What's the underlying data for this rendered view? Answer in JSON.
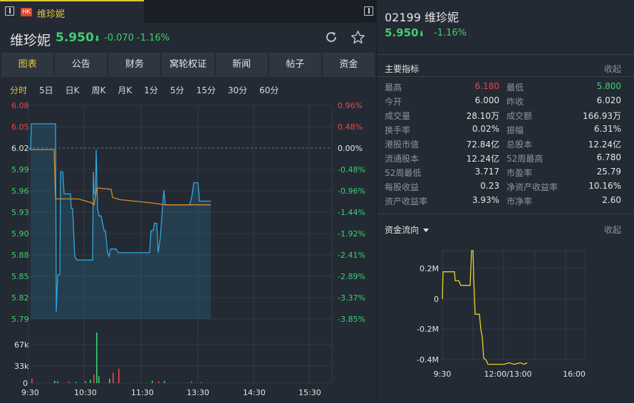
{
  "tab": {
    "badge": "HK",
    "title": "维珍妮"
  },
  "quote": {
    "name": "维珍妮",
    "price": "5.950",
    "arrow": "⬇",
    "change": "-0.070",
    "percent": "-1.16%"
  },
  "func_tabs": [
    "图表",
    "公告",
    "财务",
    "窝轮权证",
    "新闻",
    "帖子",
    "资金"
  ],
  "period_tabs": [
    "分时",
    "5日",
    "日K",
    "周K",
    "月K",
    "1分",
    "5分",
    "15分",
    "30分",
    "60分"
  ],
  "chart": {
    "price_ticks": [
      "6.08",
      "6.05",
      "6.02",
      "5.99",
      "5.96",
      "5.93",
      "5.90",
      "5.88",
      "5.85",
      "5.82",
      "5.79"
    ],
    "pct_ticks": [
      "0.96%",
      "0.48%",
      "0.00%",
      "-0.48%",
      "-0.96%",
      "-1.44%",
      "-1.92%",
      "-2.41%",
      "-2.89%",
      "-3.37%",
      "-3.85%"
    ],
    "volume_ticks": [
      "67k",
      "33k",
      "0"
    ],
    "time_ticks": [
      "9:30",
      "10:30",
      "11:30",
      "13:30",
      "14:30",
      "15:30"
    ],
    "colors": {
      "price_line": "#2ea8e0",
      "avg_line": "#d98a2e",
      "up": "#e8484e",
      "down": "#3fcf72"
    }
  },
  "right": {
    "title": "02199 维珍妮",
    "price": "5.950",
    "arrow": "⬇",
    "percent": "-1.16%",
    "key_title": "主要指标",
    "collapse": "收起",
    "indicators": [
      [
        "最高",
        "6.180",
        "最低",
        "5.800"
      ],
      [
        "今开",
        "6.000",
        "昨收",
        "6.020"
      ],
      [
        "成交量",
        "28.10万",
        "成交额",
        "166.93万"
      ],
      [
        "换手率",
        "0.02%",
        "振幅",
        "6.31%"
      ],
      [
        "港股市值",
        "72.84亿",
        "总股本",
        "12.24亿"
      ],
      [
        "流通股本",
        "12.24亿",
        "52周最高",
        "6.780"
      ],
      [
        "52周最低",
        "3.717",
        "市盈率",
        "25.79"
      ],
      [
        "每股收益",
        "0.23",
        "净资产收益率",
        "10.16%"
      ],
      [
        "资产收益率",
        "3.93%",
        "市净率",
        "2.60"
      ]
    ],
    "flow_title": "资金流向",
    "flow_collapse": "收起",
    "flow_y_ticks": [
      "0.2M",
      "0",
      "-0.2M",
      "-0.4M"
    ],
    "flow_x_ticks": [
      "9:30",
      "12:00/13:00",
      "16:00"
    ]
  }
}
